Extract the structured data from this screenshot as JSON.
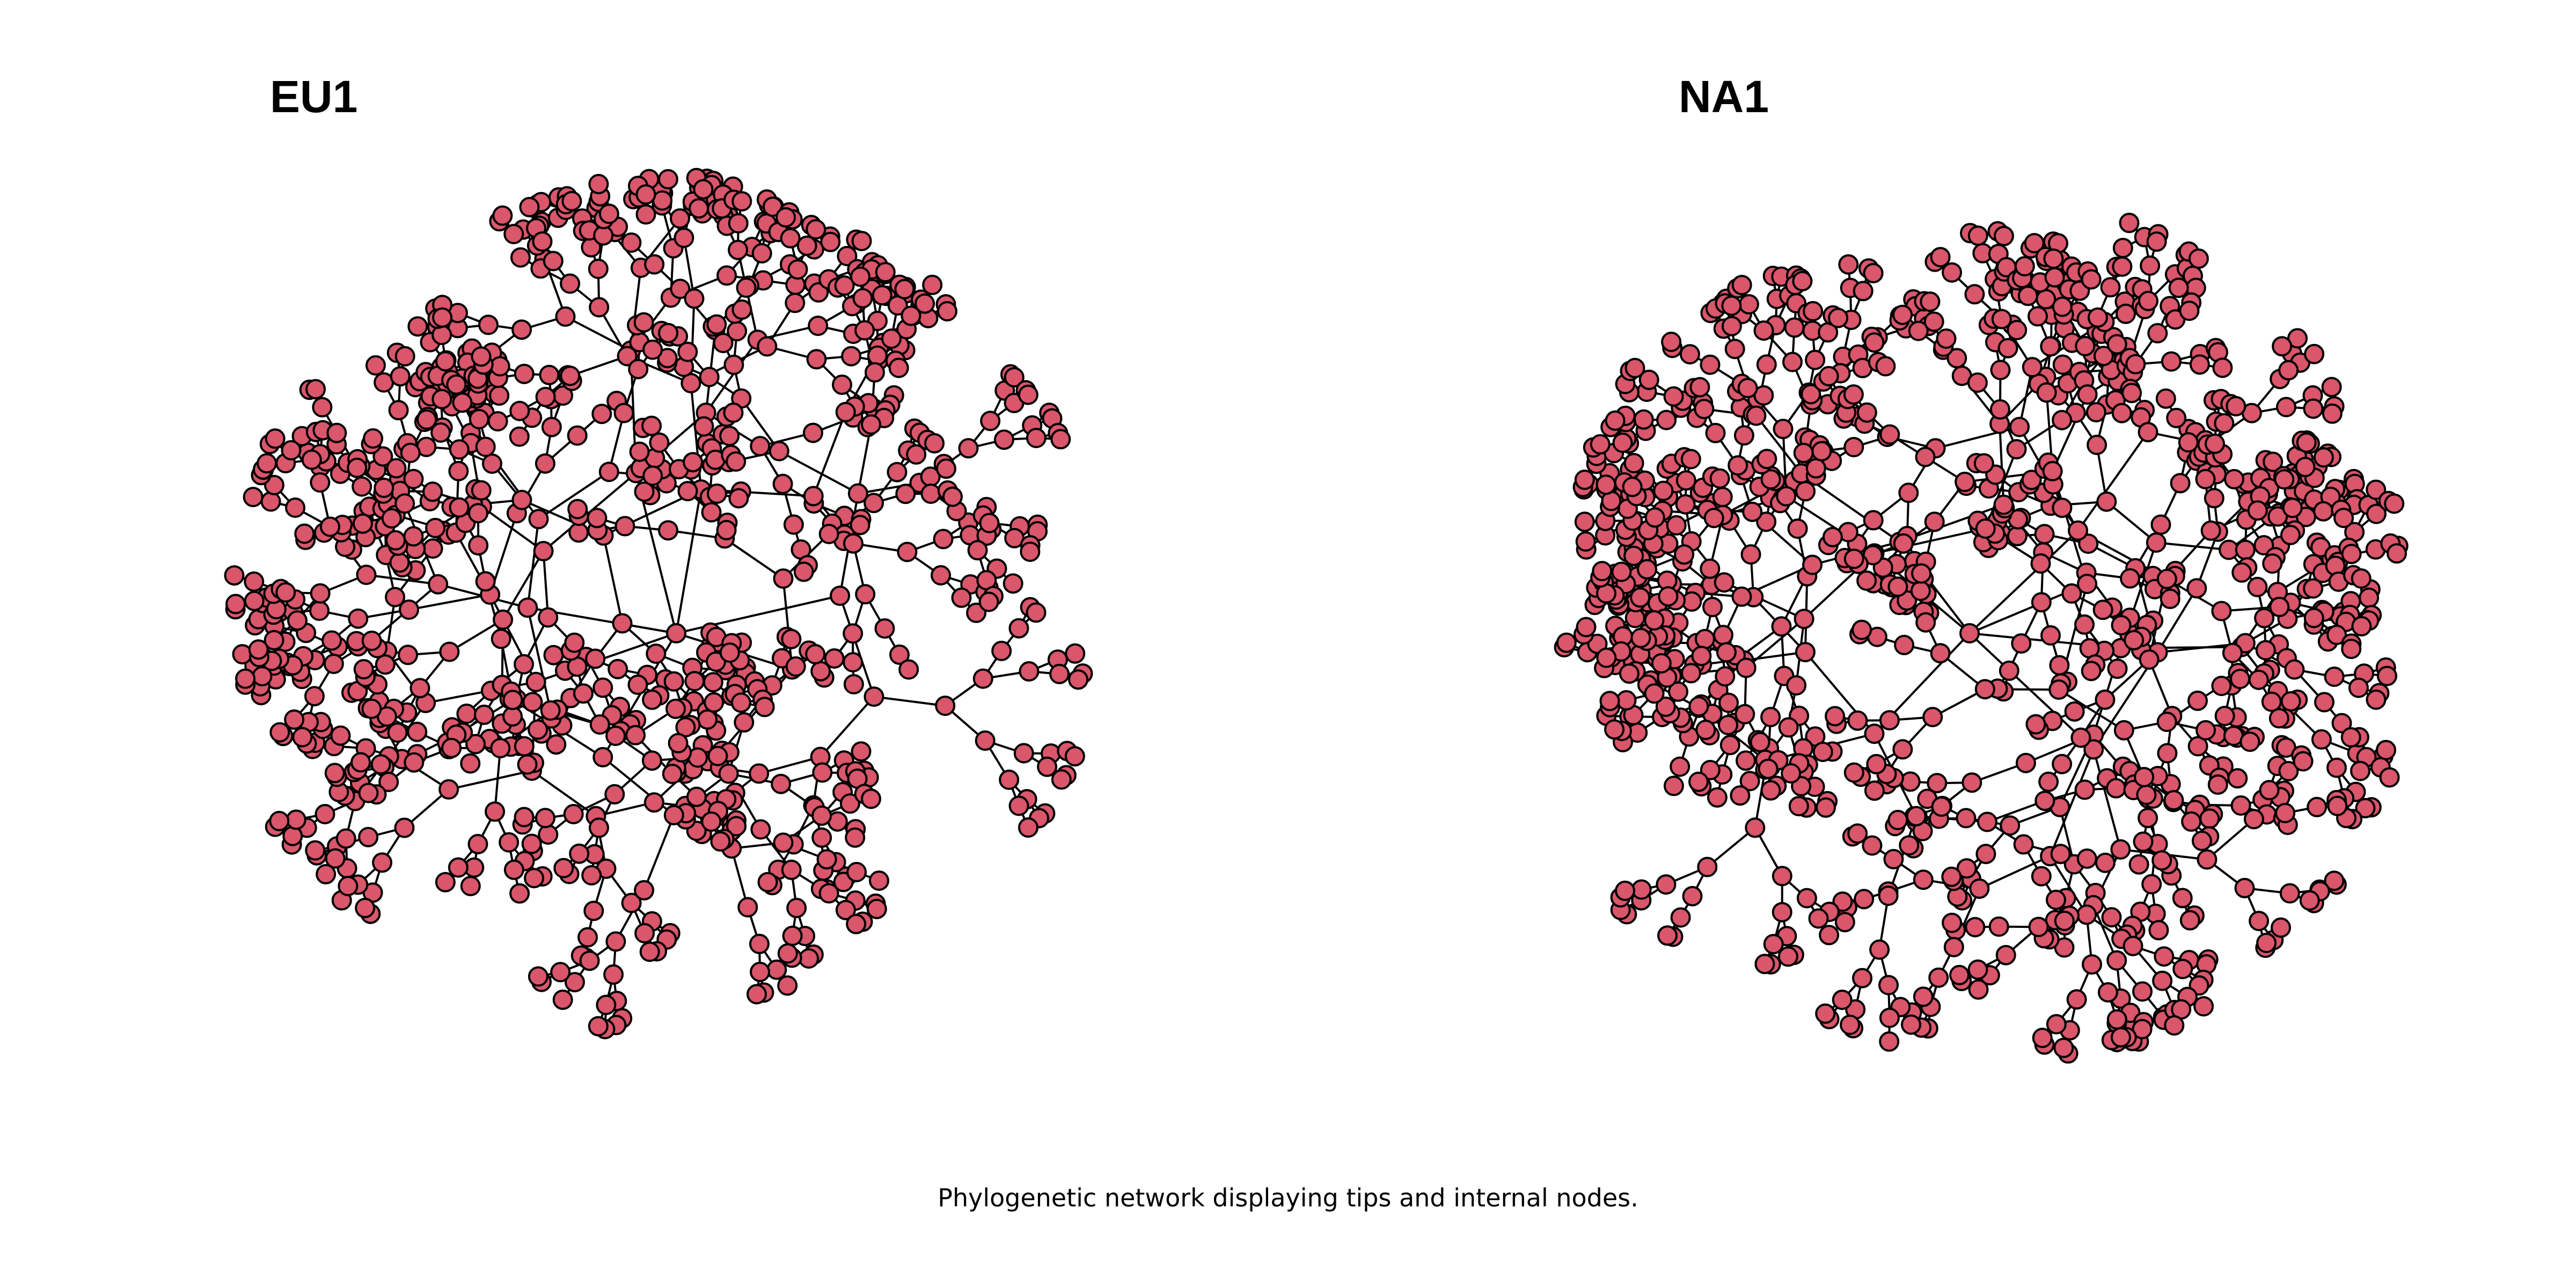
{
  "panels": [
    {
      "id": "eu1",
      "title": "EU1",
      "node_color": "#d9566b",
      "edge_color": "#000000"
    },
    {
      "id": "na1",
      "title": "NA1",
      "node_color": "#d9566b",
      "edge_color": "#000000"
    }
  ],
  "caption": "Phylogenetic network displaying tips and internal nodes."
}
